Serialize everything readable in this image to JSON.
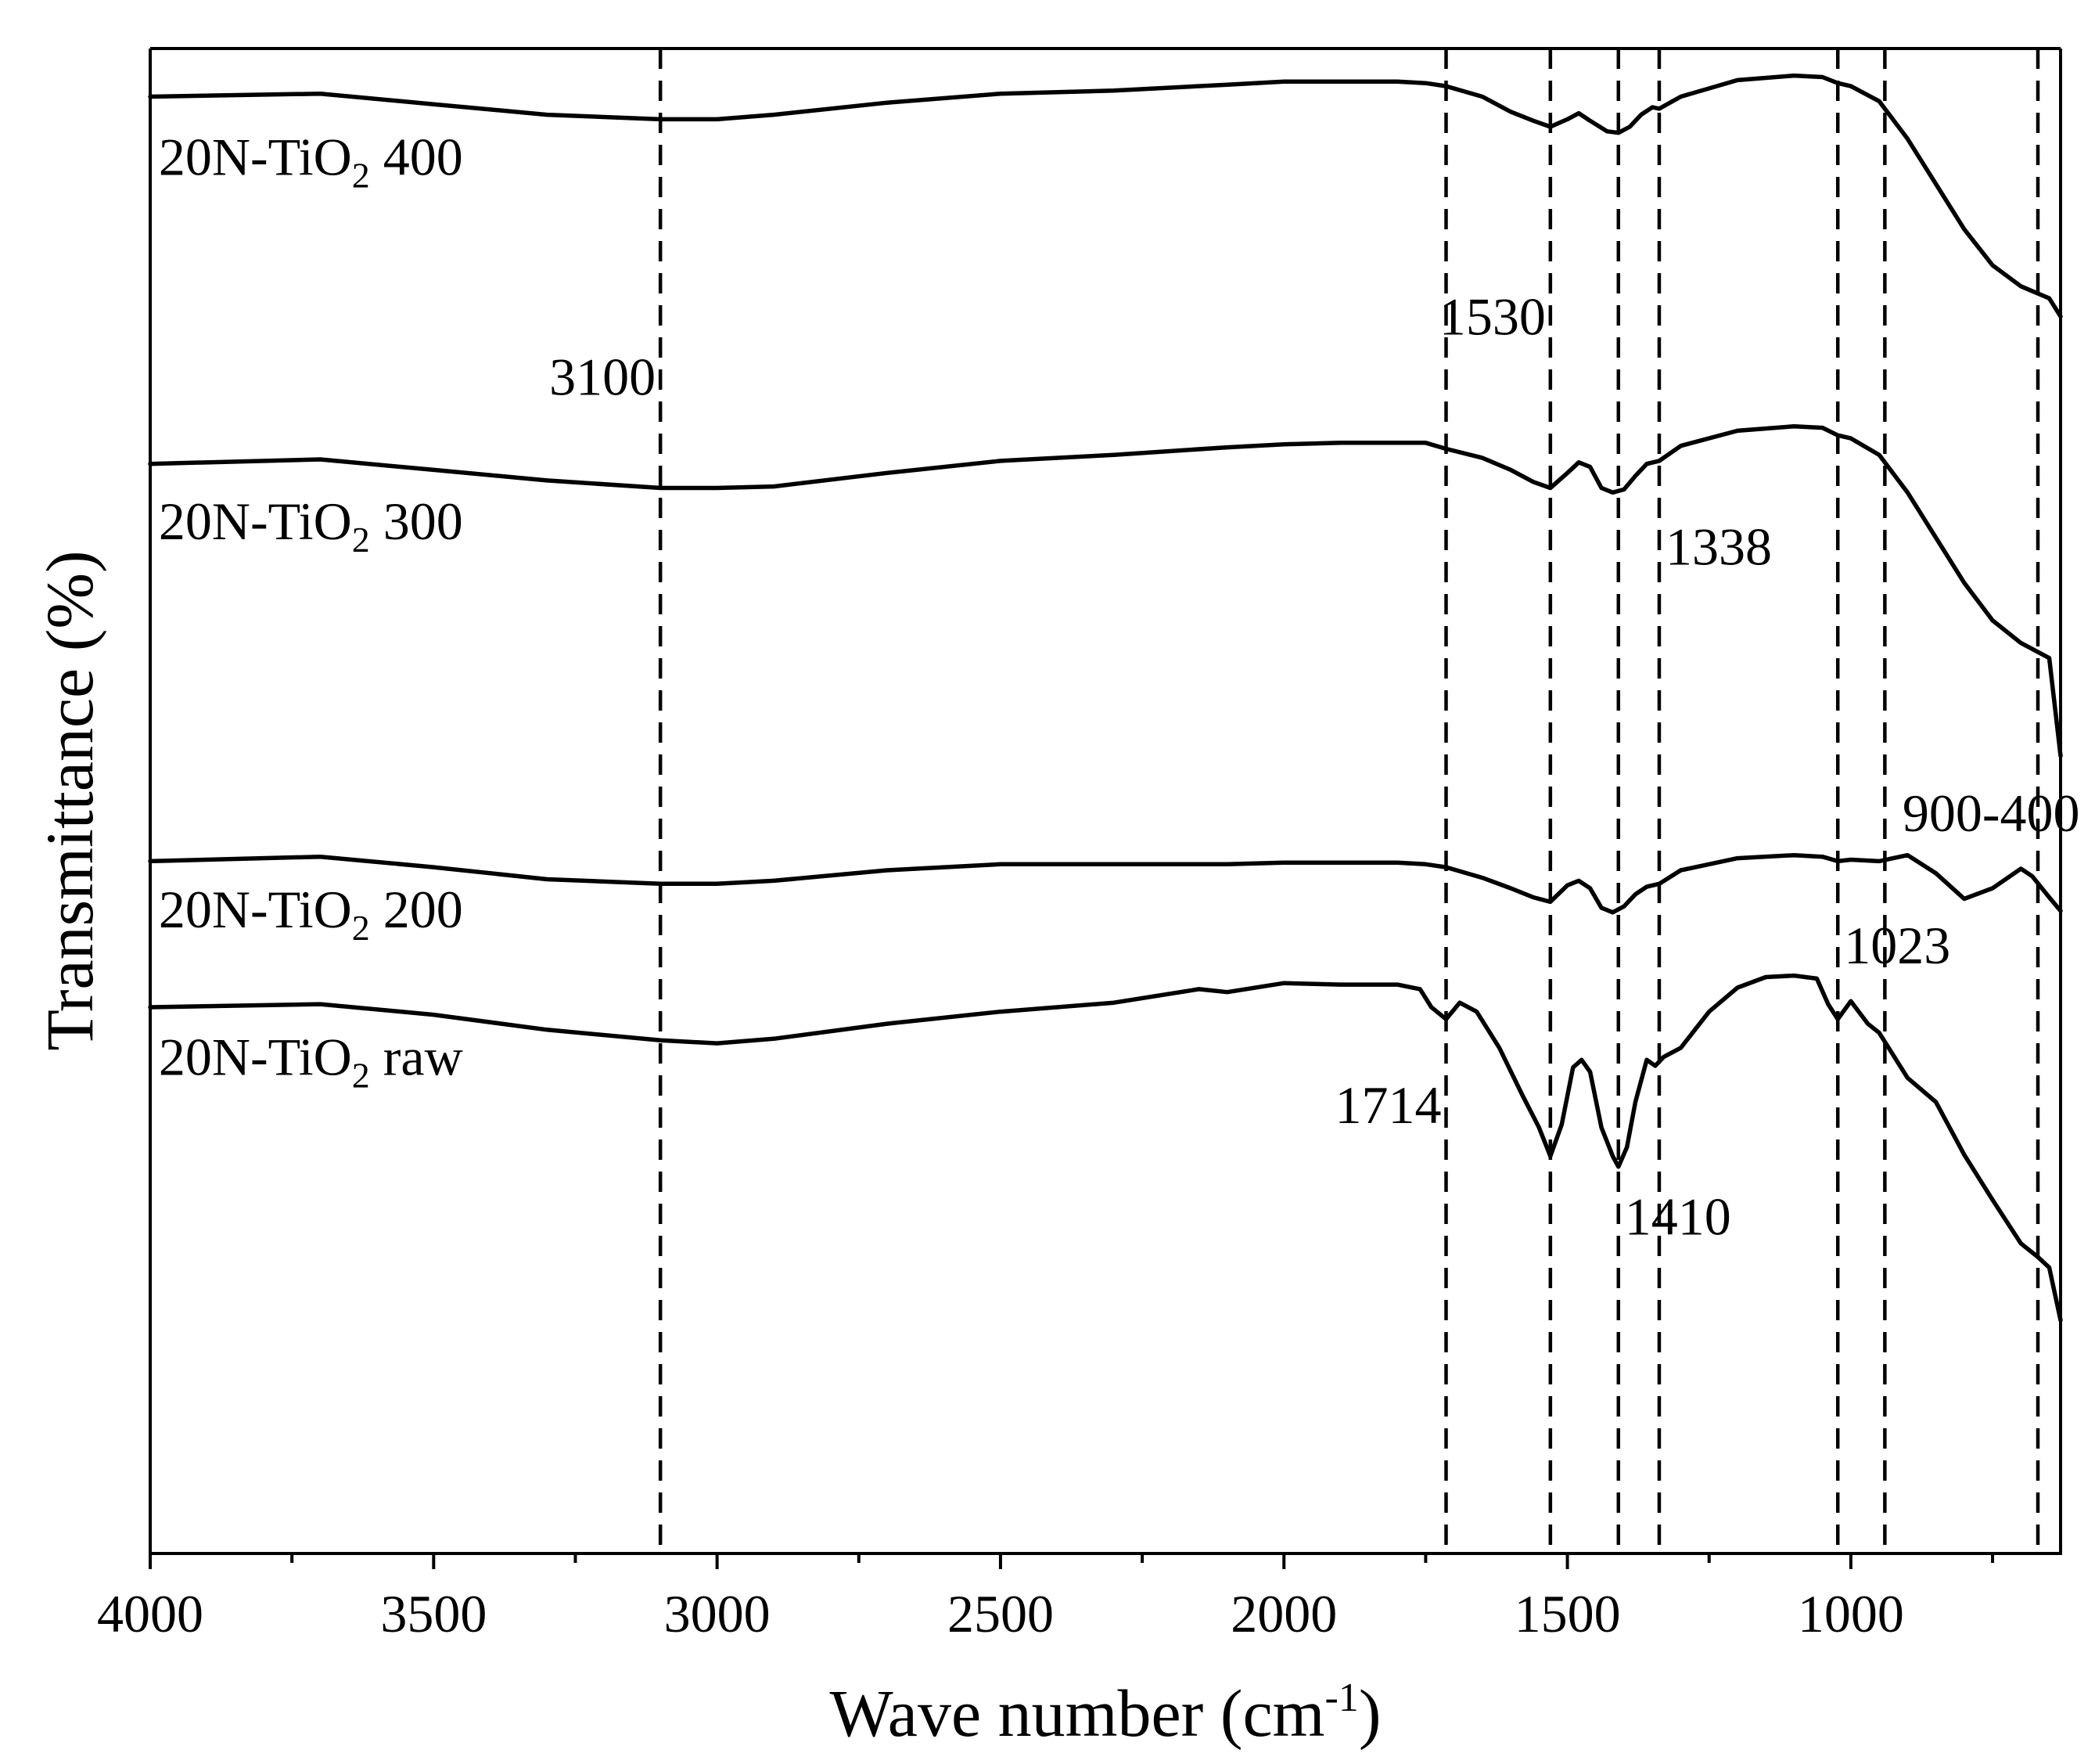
{
  "chart_data": {
    "type": "line",
    "title": "",
    "xlabel": "Wave number (cm",
    "xlabel_sup": "-1",
    "xlabel_end": ")",
    "ylabel": "Transmittance (%)",
    "xlim": [
      4000,
      630
    ],
    "ylim": [
      0,
      100
    ],
    "y_ticks_shown": false,
    "grid": false,
    "legend": "inline labels",
    "x_ticks": [
      4000,
      3500,
      3000,
      2500,
      2000,
      1500,
      1000
    ],
    "x_tick_labels": [
      "4000",
      "3500",
      "3000",
      "2500",
      "2000",
      "1500",
      "1000"
    ],
    "x_minor_ticks": [
      3750,
      3250,
      2750,
      2250,
      1750,
      1250,
      750
    ],
    "reference_lines": [
      3100,
      1714,
      1530,
      1410,
      1338,
      1023,
      940,
      670
    ],
    "annotations": [
      {
        "text": "3100",
        "x": 3100,
        "y": 77.0,
        "anchor": "end"
      },
      {
        "text": "1530",
        "x": 1530,
        "y": 81.0,
        "anchor": "end"
      },
      {
        "text": "1338",
        "x": 1338,
        "y": 65.7,
        "anchor": "start"
      },
      {
        "text": "900-400",
        "x": 920,
        "y": 48.0,
        "anchor": "start"
      },
      {
        "text": "1023",
        "x": 1023,
        "y": 39.2,
        "anchor": "start"
      },
      {
        "text": "1714",
        "x": 1714,
        "y": 28.6,
        "anchor": "end"
      },
      {
        "text": "1410",
        "x": 1410,
        "y": 21.2,
        "anchor": "start"
      }
    ],
    "series": [
      {
        "name": "20N-TiO2 400",
        "label_main": "20N-TiO",
        "label_sub": "2",
        "label_rest": " 400",
        "label_y": 91.6,
        "x": [
          4000,
          3700,
          3500,
          3300,
          3100,
          3000,
          2900,
          2700,
          2500,
          2300,
          2100,
          2000,
          1900,
          1800,
          1750,
          1714,
          1650,
          1600,
          1560,
          1530,
          1500,
          1480,
          1460,
          1430,
          1410,
          1390,
          1370,
          1350,
          1338,
          1300,
          1200,
          1100,
          1050,
          1023,
          1000,
          950,
          900,
          850,
          800,
          750,
          700,
          650,
          630
        ],
        "values": [
          96.8,
          97.0,
          96.3,
          95.6,
          95.3,
          95.3,
          95.6,
          96.4,
          97.0,
          97.2,
          97.6,
          97.8,
          97.8,
          97.8,
          97.7,
          97.5,
          96.8,
          95.8,
          95.2,
          94.8,
          95.3,
          95.7,
          95.2,
          94.5,
          94.4,
          94.8,
          95.6,
          96.1,
          96.0,
          96.8,
          97.9,
          98.2,
          98.1,
          97.7,
          97.5,
          96.5,
          94.0,
          91.0,
          88.0,
          85.6,
          84.2,
          83.4,
          82.2
        ]
      },
      {
        "name": "20N-TiO2 300",
        "label_main": "20N-TiO",
        "label_sub": "2",
        "label_rest": " 300",
        "label_y": 67.4,
        "x": [
          4000,
          3700,
          3500,
          3300,
          3100,
          3000,
          2900,
          2700,
          2500,
          2300,
          2100,
          2000,
          1900,
          1800,
          1750,
          1714,
          1650,
          1600,
          1560,
          1530,
          1500,
          1480,
          1460,
          1440,
          1420,
          1400,
          1380,
          1360,
          1338,
          1300,
          1200,
          1100,
          1050,
          1023,
          1000,
          950,
          900,
          850,
          800,
          750,
          700,
          650,
          630
        ],
        "values": [
          72.4,
          72.7,
          72.0,
          71.3,
          70.8,
          70.8,
          70.9,
          71.8,
          72.6,
          73.0,
          73.5,
          73.7,
          73.8,
          73.8,
          73.8,
          73.4,
          72.8,
          72.0,
          71.2,
          70.8,
          71.8,
          72.5,
          72.2,
          70.8,
          70.5,
          70.7,
          71.6,
          72.4,
          72.6,
          73.6,
          74.6,
          74.9,
          74.8,
          74.3,
          74.1,
          73.0,
          70.5,
          67.5,
          64.5,
          62.0,
          60.5,
          59.5,
          53.0
        ]
      },
      {
        "name": "20N-TiO2 200",
        "label_main": "20N-TiO",
        "label_sub": "2",
        "label_rest": " 200",
        "label_y": 41.6,
        "x": [
          4000,
          3700,
          3500,
          3300,
          3100,
          3000,
          2900,
          2700,
          2500,
          2300,
          2100,
          2000,
          1900,
          1800,
          1750,
          1714,
          1650,
          1600,
          1560,
          1530,
          1500,
          1480,
          1460,
          1440,
          1420,
          1400,
          1380,
          1360,
          1338,
          1300,
          1200,
          1100,
          1050,
          1023,
          1000,
          950,
          900,
          850,
          800,
          750,
          700,
          680,
          650,
          630
        ],
        "values": [
          46.0,
          46.3,
          45.6,
          44.8,
          44.5,
          44.5,
          44.7,
          45.4,
          45.8,
          45.8,
          45.8,
          45.9,
          45.9,
          45.9,
          45.8,
          45.6,
          44.9,
          44.2,
          43.6,
          43.3,
          44.4,
          44.7,
          44.2,
          42.9,
          42.6,
          43.0,
          43.8,
          44.3,
          44.5,
          45.4,
          46.2,
          46.4,
          46.3,
          46.0,
          46.1,
          46.0,
          46.4,
          45.2,
          43.5,
          44.2,
          45.5,
          45.0,
          43.6,
          42.7
        ]
      },
      {
        "name": "20N-TiO2 raw",
        "label_main": "20N-TiO",
        "label_sub": "2",
        "label_rest": " raw",
        "label_y": 31.8,
        "x": [
          4000,
          3700,
          3500,
          3300,
          3100,
          3000,
          2900,
          2700,
          2500,
          2300,
          2150,
          2100,
          2000,
          1900,
          1800,
          1760,
          1740,
          1714,
          1690,
          1660,
          1620,
          1580,
          1550,
          1530,
          1510,
          1490,
          1475,
          1460,
          1440,
          1420,
          1410,
          1395,
          1380,
          1360,
          1345,
          1330,
          1300,
          1250,
          1200,
          1150,
          1100,
          1060,
          1040,
          1023,
          1000,
          970,
          950,
          900,
          850,
          800,
          750,
          700,
          670,
          650,
          630
        ],
        "values": [
          36.3,
          36.5,
          35.8,
          34.8,
          34.1,
          33.9,
          34.2,
          35.2,
          36.0,
          36.6,
          37.5,
          37.3,
          37.9,
          37.8,
          37.8,
          37.5,
          36.3,
          35.5,
          36.6,
          36.0,
          33.6,
          30.5,
          28.3,
          26.4,
          28.5,
          32.3,
          32.8,
          32.0,
          28.3,
          26.4,
          25.7,
          27.0,
          30.0,
          32.8,
          32.4,
          33.0,
          33.6,
          36.0,
          37.6,
          38.3,
          38.4,
          38.2,
          36.5,
          35.5,
          36.7,
          35.2,
          34.6,
          31.6,
          30.0,
          26.5,
          23.5,
          20.6,
          19.7,
          19.0,
          15.5
        ]
      }
    ]
  }
}
